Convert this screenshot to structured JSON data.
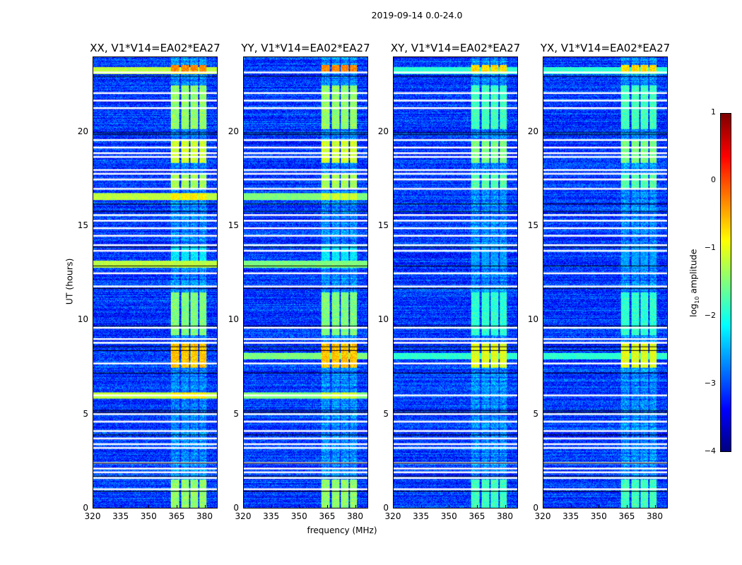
{
  "figure": {
    "suptitle": "2019-09-14 0.0-24.0"
  },
  "chart_data": {
    "type": "heatmap",
    "title": "2019-09-14 0.0-24.0",
    "xlabel": "frequency (MHz)",
    "ylabel": "UT (hours)",
    "xlim": [
      320,
      387
    ],
    "ylim": [
      0,
      24
    ],
    "xticks": [
      "320",
      "335",
      "350",
      "365",
      "380"
    ],
    "xtick_values": [
      320,
      335,
      350,
      365,
      380
    ],
    "yticks": [
      "0",
      "5",
      "10",
      "15",
      "20"
    ],
    "ytick_values": [
      0,
      5,
      10,
      15,
      20
    ],
    "panels": [
      {
        "title": "XX, V1*V14=EA02*EA27",
        "broadband_bright_hours": [
          23.3,
          16.6,
          13.0,
          6.0
        ],
        "broadband_level": -1.2
      },
      {
        "title": "YY, V1*V14=EA02*EA27",
        "broadband_bright_hours": [
          8.1,
          16.6,
          13.0,
          6.0
        ],
        "broadband_level": -1.5
      },
      {
        "title": "XY, V1*V14=EA02*EA27",
        "broadband_bright_hours": [
          23.3,
          8.1
        ],
        "broadband_level": -1.9
      },
      {
        "title": "YX, V1*V14=EA02*EA27",
        "broadband_bright_hours": [
          23.3,
          8.1
        ],
        "broadband_level": -1.9
      }
    ],
    "background_level_log10": -3.1,
    "bright_subbands_mhz": [
      [
        362,
        366.5
      ],
      [
        367.5,
        371.5
      ],
      [
        372.5,
        376.5
      ],
      [
        377.5,
        381
      ]
    ],
    "active_intervals_hours": [
      [
        0,
        1.5,
        -1.4
      ],
      [
        7.5,
        8.8,
        -0.6
      ],
      [
        9.2,
        11.5,
        -1.5
      ],
      [
        12.8,
        14.0,
        -2.2
      ],
      [
        17.0,
        17.8,
        -1.3
      ],
      [
        18.4,
        19.6,
        -1.1
      ],
      [
        20.2,
        22.5,
        -1.4
      ],
      [
        23.2,
        23.6,
        -0.3
      ]
    ],
    "flagged_hours": [
      23.2,
      22.1,
      21.7,
      21.3,
      19.6,
      19.2,
      18.9,
      18.7,
      18.0,
      17.8,
      17.5,
      17.0,
      15.6,
      15.3,
      14.9,
      14.5,
      14.0,
      13.7,
      12.5,
      11.8,
      9.6,
      9.0,
      8.8,
      7.7,
      6.0,
      5.0,
      4.6,
      4.1,
      3.7,
      3.4,
      3.2,
      2.4,
      2.1,
      1.9,
      1.6,
      1.0
    ],
    "scan_boundary_hours": [
      23.0,
      20.0,
      19.9,
      16.2,
      15.8,
      13.9,
      12.9,
      11.7,
      9.7,
      8.6,
      8.4,
      7.2,
      5.2,
      5.1,
      3.9,
      2.4,
      1.7,
      0.9
    ],
    "colorbar": {
      "label": "log10 amplitude",
      "label_main": "log",
      "label_sub": "10",
      "label_rest": " amplitude",
      "range": [
        -4,
        1
      ],
      "ticks": [
        "1",
        "0",
        "−1",
        "−2",
        "−3",
        "−4"
      ],
      "tick_values": [
        1,
        0,
        -1,
        -2,
        -3,
        -4
      ],
      "colormap": "jet"
    }
  }
}
